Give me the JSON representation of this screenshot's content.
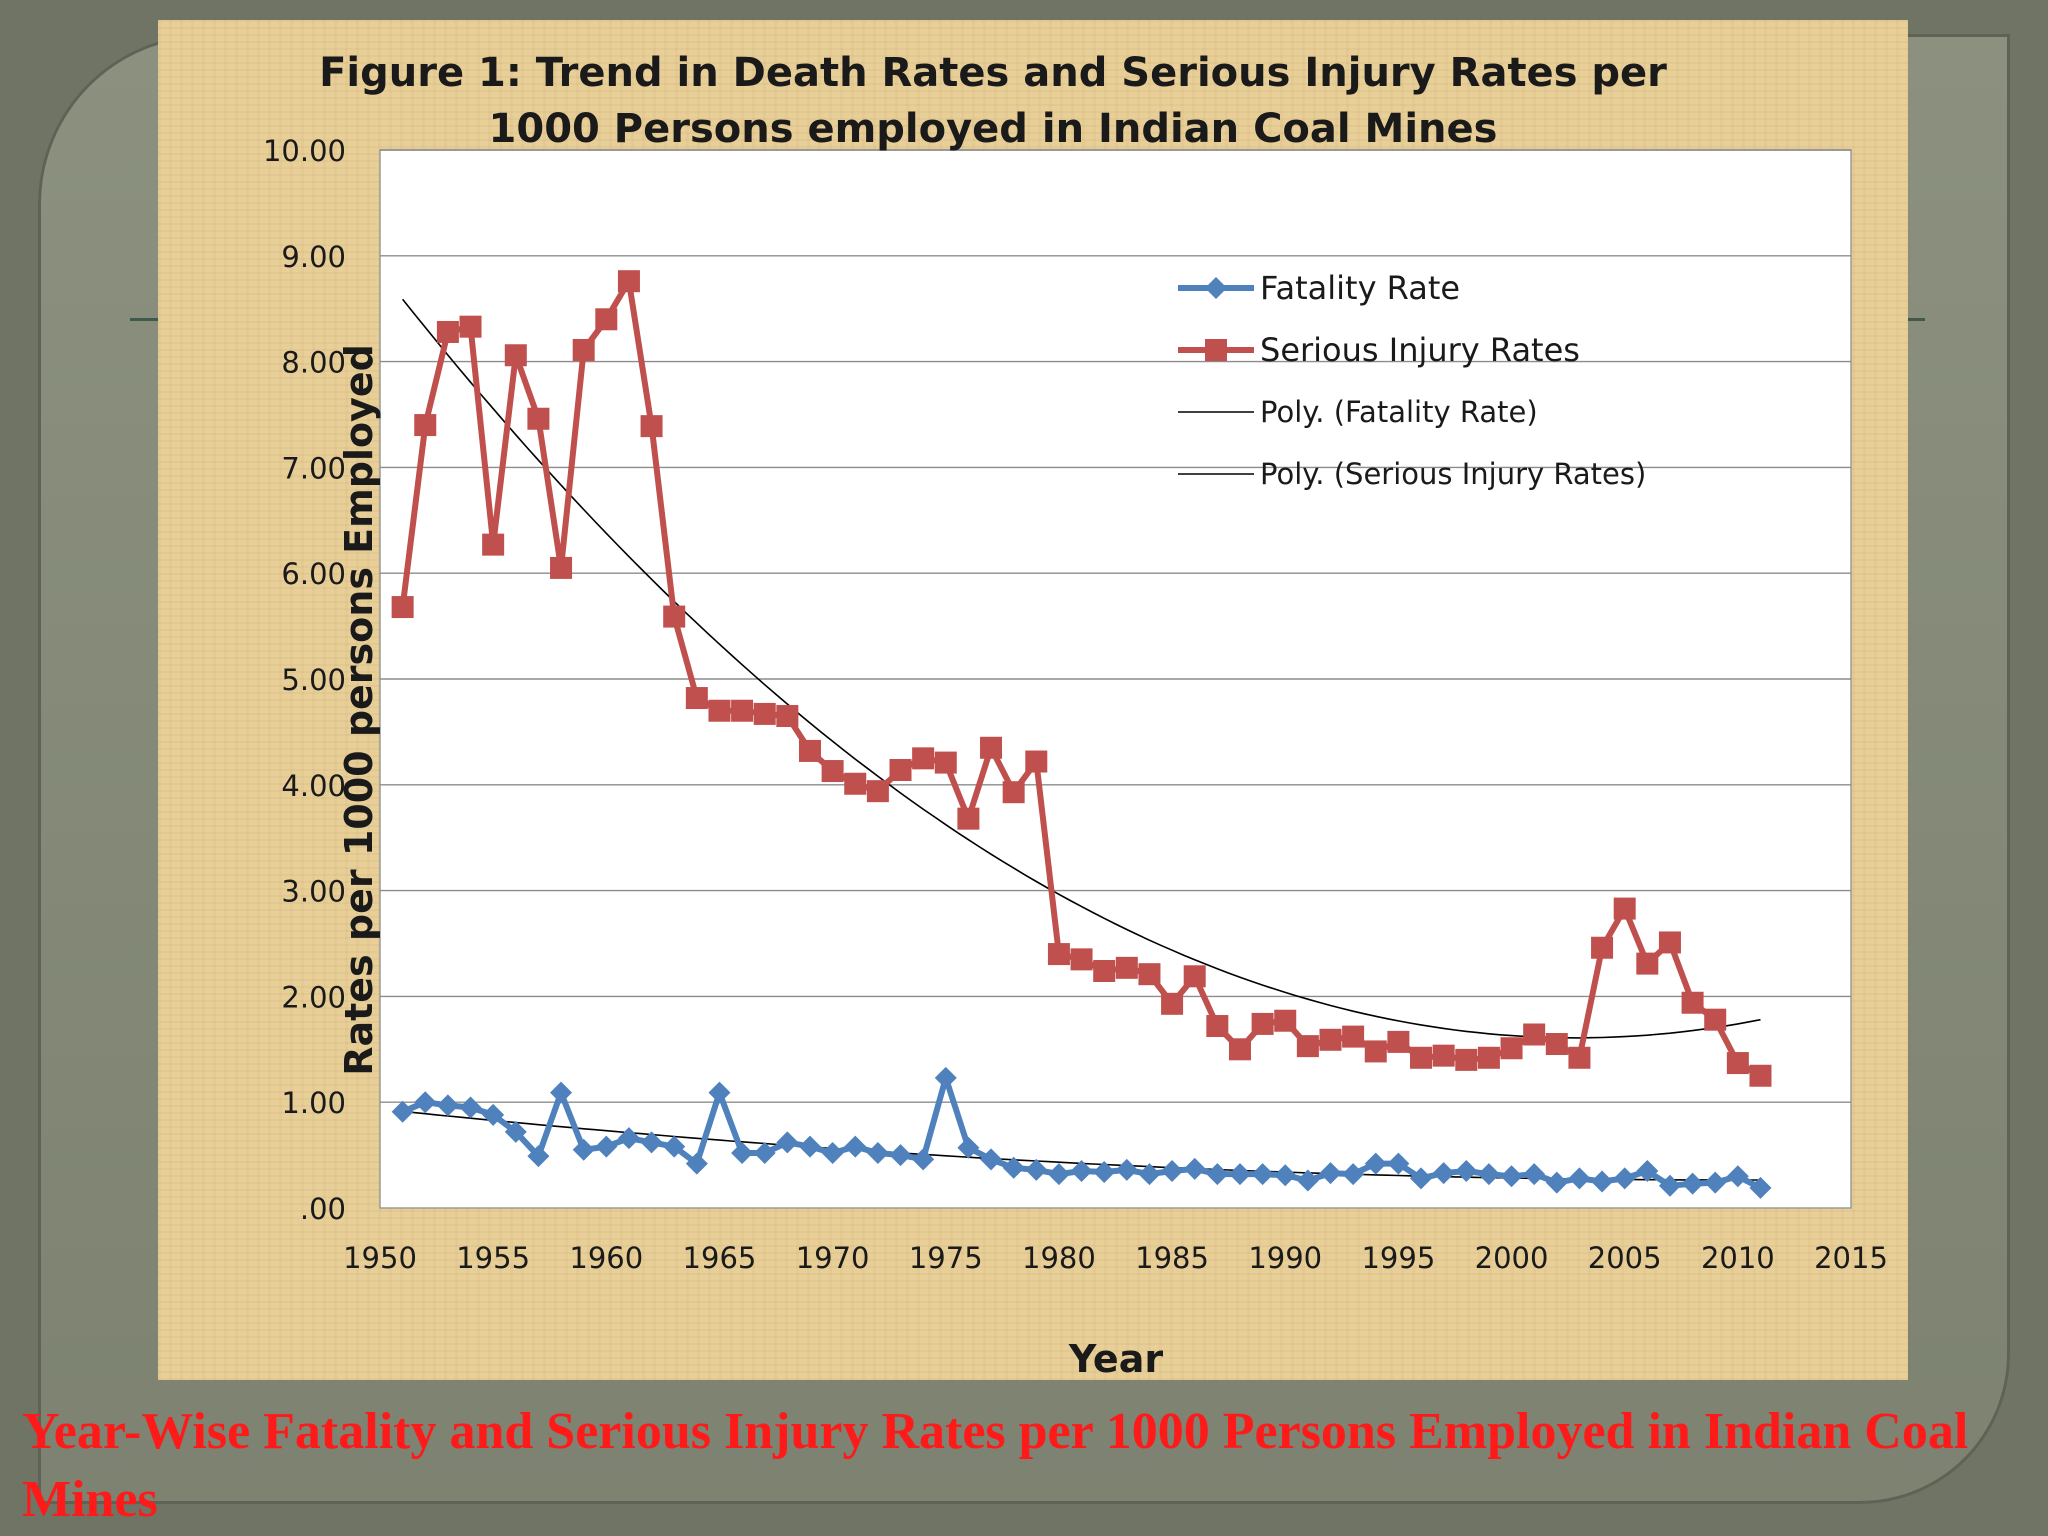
{
  "caption": "Year-Wise Fatality and Serious Injury Rates per 1000 Persons Employed in Indian Coal Mines",
  "chart_data": {
    "type": "line",
    "title_line1": "Figure 1: Trend in Death Rates and Serious Injury Rates per",
    "title_line2": "1000 Persons employed in Indian Coal Mines",
    "xlabel": "Year",
    "ylabel": "Rates per 1000 persons Employed",
    "xlim": [
      1950,
      2015
    ],
    "ylim": [
      0,
      10
    ],
    "x_ticks": [
      "1950",
      "1955",
      "1960",
      "1965",
      "1970",
      "1975",
      "1980",
      "1985",
      "1990",
      "1995",
      "2000",
      "2005",
      "2010",
      "2015"
    ],
    "y_ticks": [
      ".00",
      "1.00",
      "2.00",
      "3.00",
      "4.00",
      "5.00",
      "6.00",
      "7.00",
      "8.00",
      "9.00",
      "10.00"
    ],
    "grid": true,
    "legend_position": "top-right",
    "x": [
      1951,
      1952,
      1953,
      1954,
      1955,
      1956,
      1957,
      1958,
      1959,
      1960,
      1961,
      1962,
      1963,
      1964,
      1965,
      1966,
      1967,
      1968,
      1969,
      1970,
      1971,
      1972,
      1973,
      1974,
      1975,
      1976,
      1977,
      1978,
      1979,
      1980,
      1981,
      1982,
      1983,
      1984,
      1985,
      1986,
      1987,
      1988,
      1989,
      1990,
      1991,
      1992,
      1993,
      1994,
      1995,
      1996,
      1997,
      1998,
      1999,
      2000,
      2001,
      2002,
      2003,
      2004,
      2005,
      2006,
      2007,
      2008,
      2009,
      2010,
      2011
    ],
    "series": [
      {
        "name": "Fatality Rate",
        "color": "#4f81bd",
        "marker": "diamond",
        "values": [
          0.91,
          1.0,
          0.97,
          0.95,
          0.88,
          0.72,
          0.49,
          1.09,
          0.55,
          0.58,
          0.66,
          0.62,
          0.58,
          0.42,
          1.09,
          0.52,
          0.52,
          0.62,
          0.58,
          0.52,
          0.58,
          0.52,
          0.5,
          0.46,
          1.23,
          0.57,
          0.46,
          0.38,
          0.36,
          0.32,
          0.35,
          0.34,
          0.36,
          0.32,
          0.35,
          0.37,
          0.32,
          0.32,
          0.32,
          0.31,
          0.26,
          0.33,
          0.32,
          0.42,
          0.42,
          0.28,
          0.33,
          0.35,
          0.32,
          0.3,
          0.32,
          0.24,
          0.28,
          0.25,
          0.28,
          0.35,
          0.21,
          0.23,
          0.24,
          0.3,
          0.19
        ]
      },
      {
        "name": "Serious Injury Rates",
        "color": "#c0504d",
        "marker": "square",
        "values": [
          5.68,
          7.4,
          8.28,
          8.33,
          6.27,
          8.06,
          7.46,
          6.05,
          8.11,
          8.4,
          8.76,
          7.39,
          5.59,
          4.82,
          4.7,
          4.7,
          4.67,
          4.65,
          4.32,
          4.13,
          4.01,
          3.94,
          4.14,
          4.25,
          4.21,
          3.68,
          4.35,
          3.93,
          4.22,
          2.4,
          2.35,
          2.24,
          2.27,
          2.21,
          1.93,
          2.19,
          1.72,
          1.5,
          1.74,
          1.77,
          1.53,
          1.59,
          1.62,
          1.48,
          1.57,
          1.42,
          1.44,
          1.4,
          1.42,
          1.51,
          1.64,
          1.55,
          1.42,
          2.46,
          2.83,
          2.31,
          2.51,
          1.94,
          1.78,
          1.37,
          1.25
        ]
      }
    ],
    "trendlines": [
      {
        "name": "Poly. (Fatality Rate)",
        "type": "polynomial",
        "order": 2,
        "color": "#000000",
        "of_series": 0
      },
      {
        "name": "Poly. (Serious Injury Rates)",
        "type": "polynomial",
        "order": 2,
        "color": "#000000",
        "of_series": 1
      }
    ]
  }
}
